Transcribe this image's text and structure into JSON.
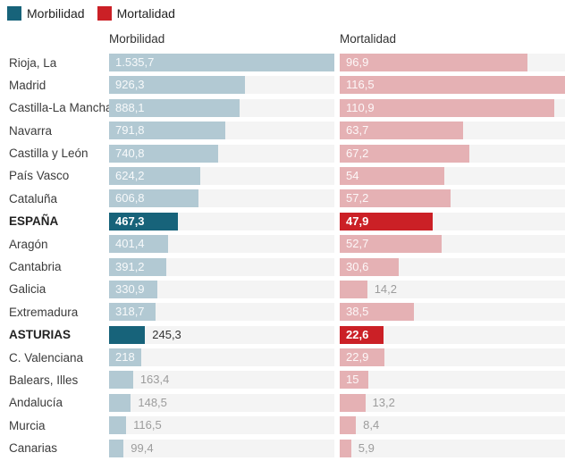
{
  "legend": {
    "items": [
      {
        "label": "Morbilidad",
        "color": "#17637a"
      },
      {
        "label": "Mortalidad",
        "color": "#cb2026"
      }
    ]
  },
  "colors": {
    "background": "#ffffff",
    "track": "#f4f4f4",
    "label_text": "#3b3b3b",
    "header_text": "#333333",
    "value_inside": "rgba(255,255,255,0.9)",
    "value_outside": "#9c9c9c",
    "morbilidad_bar": "#b2c9d3",
    "morbilidad_highlight": "#17637a",
    "mortalidad_bar": "#e5b1b4",
    "mortalidad_highlight": "#cb2026"
  },
  "chart_data": {
    "type": "bar",
    "orientation": "horizontal",
    "legend_position": "top",
    "grid": false,
    "columns": [
      {
        "label": "Morbilidad",
        "max": 1535.7,
        "bar_color": "#b2c9d3",
        "highlight_color": "#17637a"
      },
      {
        "label": "Mortalidad",
        "max": 116.5,
        "bar_color": "#e5b1b4",
        "highlight_color": "#cb2026"
      }
    ],
    "rows": [
      {
        "label": "Rioja, La",
        "values": [
          1535.7,
          96.9
        ],
        "display": [
          "1.535,7",
          "96,9"
        ],
        "highlight": false
      },
      {
        "label": "Madrid",
        "values": [
          926.3,
          116.5
        ],
        "display": [
          "926,3",
          "116,5"
        ],
        "highlight": false
      },
      {
        "label": "Castilla-La Mancha",
        "values": [
          888.1,
          110.9
        ],
        "display": [
          "888,1",
          "110,9"
        ],
        "highlight": false
      },
      {
        "label": "Navarra",
        "values": [
          791.8,
          63.7
        ],
        "display": [
          "791,8",
          "63,7"
        ],
        "highlight": false
      },
      {
        "label": "Castilla y León",
        "values": [
          740.8,
          67.2
        ],
        "display": [
          "740,8",
          "67,2"
        ],
        "highlight": false
      },
      {
        "label": "País Vasco",
        "values": [
          624.2,
          54
        ],
        "display": [
          "624,2",
          "54"
        ],
        "highlight": false
      },
      {
        "label": "Cataluña",
        "values": [
          606.8,
          57.2
        ],
        "display": [
          "606,8",
          "57,2"
        ],
        "highlight": false
      },
      {
        "label": "ESPAÑA",
        "values": [
          467.3,
          47.9
        ],
        "display": [
          "467,3",
          "47,9"
        ],
        "highlight": true
      },
      {
        "label": "Aragón",
        "values": [
          401.4,
          52.7
        ],
        "display": [
          "401,4",
          "52,7"
        ],
        "highlight": false
      },
      {
        "label": "Cantabria",
        "values": [
          391.2,
          30.6
        ],
        "display": [
          "391,2",
          "30,6"
        ],
        "highlight": false
      },
      {
        "label": "Galicia",
        "values": [
          330.9,
          14.2
        ],
        "display": [
          "330,9",
          "14,2"
        ],
        "highlight": false
      },
      {
        "label": "Extremadura",
        "values": [
          318.7,
          38.5
        ],
        "display": [
          "318,7",
          "38,5"
        ],
        "highlight": false
      },
      {
        "label": "ASTURIAS",
        "values": [
          245.3,
          22.6
        ],
        "display": [
          "245,3",
          "22,6"
        ],
        "highlight": true
      },
      {
        "label": "C. Valenciana",
        "values": [
          218,
          22.9
        ],
        "display": [
          "218",
          "22,9"
        ],
        "highlight": false
      },
      {
        "label": "Balears, Illes",
        "values": [
          163.4,
          15
        ],
        "display": [
          "163,4",
          "15"
        ],
        "highlight": false
      },
      {
        "label": "Andalucía",
        "values": [
          148.5,
          13.2
        ],
        "display": [
          "148,5",
          "13,2"
        ],
        "highlight": false
      },
      {
        "label": "Murcia",
        "values": [
          116.5,
          8.4
        ],
        "display": [
          "116,5",
          "8,4"
        ],
        "highlight": false
      },
      {
        "label": "Canarias",
        "values": [
          99.4,
          5.9
        ],
        "display": [
          "99,4",
          "5,9"
        ],
        "highlight": false
      }
    ]
  }
}
